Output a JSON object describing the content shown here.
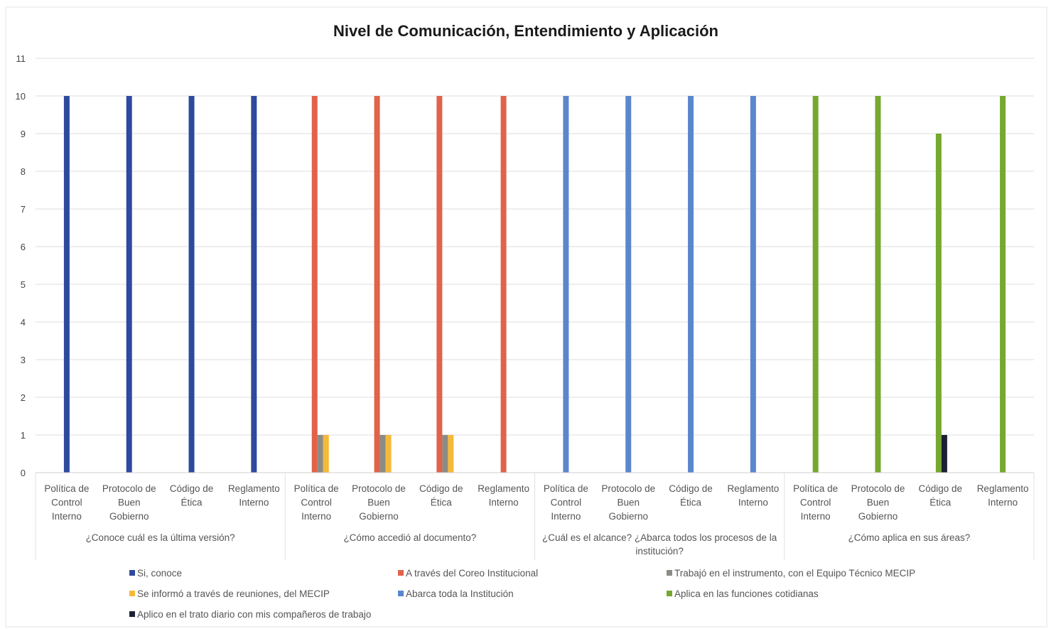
{
  "chart_data": {
    "type": "bar",
    "title": "Nivel de Comunicación, Entendimiento y Aplicación",
    "ylim": [
      0,
      11
    ],
    "yticks": [
      0,
      1,
      2,
      3,
      4,
      5,
      6,
      7,
      8,
      9,
      10,
      11
    ],
    "grid": true,
    "legend_position": "bottom",
    "groups": [
      {
        "label": "¿Conoce cuál es la última versión?",
        "categories": [
          [
            "Política de",
            "Control",
            "Interno"
          ],
          [
            "Protocolo de",
            "Buen",
            "Gobierno"
          ],
          [
            "Código de",
            "Ética"
          ],
          [
            "Reglamento",
            "Interno"
          ]
        ]
      },
      {
        "label": "¿Cómo accedió al documento?",
        "categories": [
          [
            "Política de",
            "Control",
            "Interno"
          ],
          [
            "Protocolo de",
            "Buen",
            "Gobierno"
          ],
          [
            "Código de",
            "Ética"
          ],
          [
            "Reglamento",
            "Interno"
          ]
        ]
      },
      {
        "label": [
          "¿Cuál es el alcance? ¿Abarca todos los procesos de la",
          "institución?"
        ],
        "categories": [
          [
            "Política de",
            "Control",
            "Interno"
          ],
          [
            "Protocolo de",
            "Buen",
            "Gobierno"
          ],
          [
            "Código de",
            "Ética"
          ],
          [
            "Reglamento",
            "Interno"
          ]
        ]
      },
      {
        "label": "¿Cómo aplica en sus áreas?",
        "categories": [
          [
            "Política de",
            "Control",
            "Interno"
          ],
          [
            "Protocolo de",
            "Buen",
            "Gobierno"
          ],
          [
            "Código de",
            "Ética"
          ],
          [
            "Reglamento",
            "Interno"
          ]
        ]
      }
    ],
    "series": [
      {
        "name": "Si, conoce",
        "color": "#2e4a9e",
        "values": [
          10,
          10,
          10,
          10,
          0,
          0,
          0,
          0,
          0,
          0,
          0,
          0,
          0,
          0,
          0,
          0
        ]
      },
      {
        "name": "A través del Coreo Institucional",
        "color": "#e0634a",
        "values": [
          0,
          0,
          0,
          0,
          10,
          10,
          10,
          10,
          0,
          0,
          0,
          0,
          0,
          0,
          0,
          0
        ]
      },
      {
        "name": "Trabajó en el instrumento, con el Equipo Técnico MECIP",
        "color": "#8c8c84",
        "values": [
          0,
          0,
          0,
          0,
          1,
          1,
          1,
          0,
          0,
          0,
          0,
          0,
          0,
          0,
          0,
          0
        ]
      },
      {
        "name": "Se informó a través de reuniones, del MECIP",
        "color": "#f5b93a",
        "values": [
          0,
          0,
          0,
          0,
          1,
          1,
          1,
          0,
          0,
          0,
          0,
          0,
          0,
          0,
          0,
          0
        ]
      },
      {
        "name": "Abarca toda la Institución",
        "color": "#5a86cc",
        "values": [
          0,
          0,
          0,
          0,
          0,
          0,
          0,
          0,
          10,
          10,
          10,
          10,
          0,
          0,
          0,
          0
        ]
      },
      {
        "name": "Aplica en las funciones cotidianas",
        "color": "#76a82f",
        "values": [
          0,
          0,
          0,
          0,
          0,
          0,
          0,
          0,
          0,
          0,
          0,
          0,
          10,
          10,
          9,
          10
        ]
      },
      {
        "name": "Aplico en el trato diario con mis compañeros de trabajo",
        "color": "#1b2035",
        "values": [
          0,
          0,
          0,
          0,
          0,
          0,
          0,
          0,
          0,
          0,
          0,
          0,
          0,
          0,
          1,
          0
        ]
      }
    ]
  }
}
